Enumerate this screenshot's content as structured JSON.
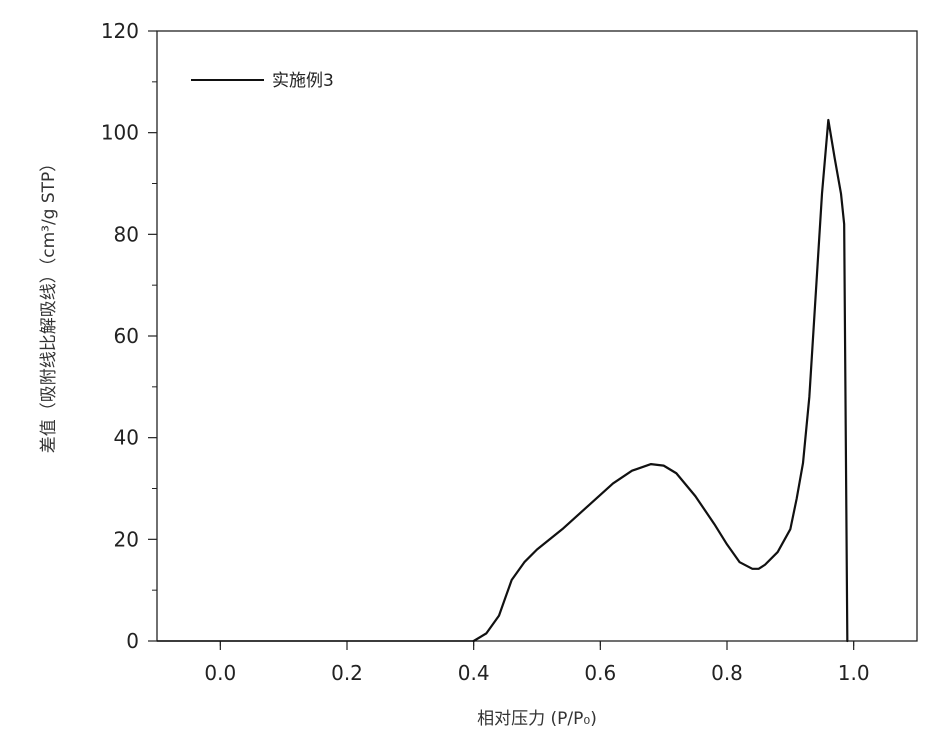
{
  "chart_data": {
    "type": "line",
    "xlabel": "相对压力 (P/P₀)",
    "ylabel": "差值（吸附线比解吸线）（cm³/g STP）",
    "xlim": [
      -0.1,
      1.1
    ],
    "ylim": [
      0,
      120
    ],
    "xticks": [
      0.0,
      0.2,
      0.4,
      0.6,
      0.8,
      1.0
    ],
    "xtick_labels": [
      "0.0",
      "0.2",
      "0.4",
      "0.6",
      "0.8",
      "1.0"
    ],
    "yticks": [
      0,
      20,
      40,
      60,
      80,
      100,
      120
    ],
    "ytick_labels": [
      "0",
      "20",
      "40",
      "60",
      "80",
      "100",
      "120"
    ],
    "grid": false,
    "legend_position": "top-left",
    "series": [
      {
        "name": "实施例3",
        "color": "#111111",
        "x": [
          0.4,
          0.42,
          0.44,
          0.45,
          0.46,
          0.48,
          0.5,
          0.54,
          0.58,
          0.62,
          0.65,
          0.68,
          0.7,
          0.72,
          0.75,
          0.78,
          0.8,
          0.82,
          0.84,
          0.85,
          0.86,
          0.88,
          0.9,
          0.91,
          0.92,
          0.93,
          0.94,
          0.95,
          0.96,
          0.97,
          0.98,
          0.985,
          0.99
        ],
        "y": [
          0,
          1.5,
          5,
          8.5,
          12,
          15.5,
          18,
          22,
          26.5,
          31,
          33.5,
          34.8,
          34.5,
          33,
          28.5,
          23,
          19,
          15.5,
          14.2,
          14.2,
          15,
          17.5,
          22,
          28,
          35,
          48,
          68,
          88,
          102.5,
          95,
          88,
          82,
          0
        ]
      }
    ]
  }
}
